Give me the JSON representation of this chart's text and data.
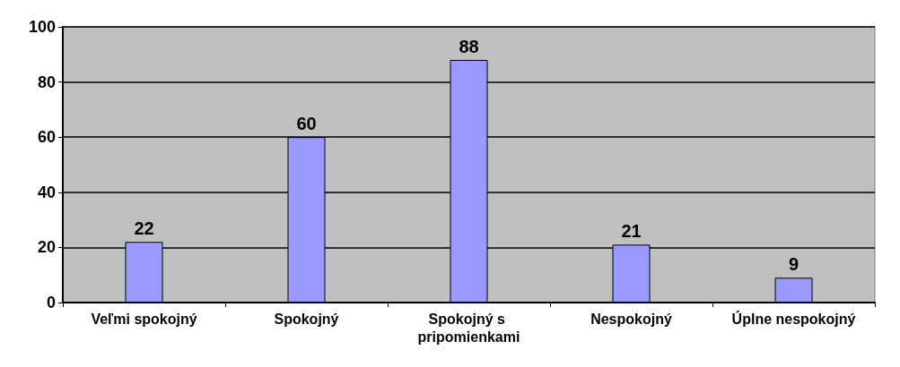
{
  "chart_data": {
    "type": "bar",
    "categories": [
      "Veľmi spokojný",
      "Spokojný",
      "Spokojný s pripomienkami",
      "Nespokojný",
      "Úplne nespokojný"
    ],
    "values": [
      22,
      60,
      88,
      21,
      9
    ],
    "color": "#9999ff",
    "ylim": [
      0,
      100
    ],
    "yticks": [
      0,
      20,
      40,
      60,
      80,
      100
    ],
    "grid": "y",
    "data_labels": true
  }
}
